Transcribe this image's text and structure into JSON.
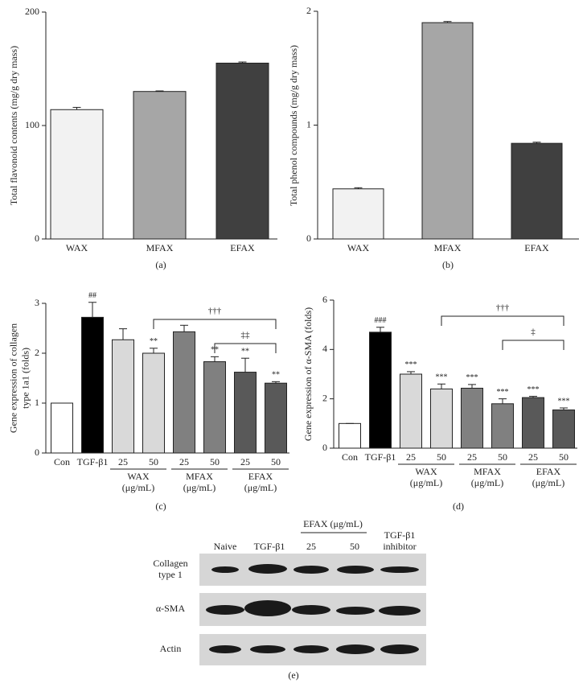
{
  "chart_data": [
    {
      "type": "bar",
      "ylabel": [
        "Total flavonoid contents (mg/g dry mass)"
      ],
      "caption": "(a)",
      "categories": [
        "WAX",
        "MFAX",
        "EFAX"
      ],
      "values": [
        114,
        130,
        155
      ],
      "errors": [
        2,
        0.5,
        1
      ],
      "colors": [
        "#f2f2f2",
        "#a6a6a6",
        "#404040"
      ],
      "ylim": [
        0,
        200
      ],
      "yticks": [
        0,
        100,
        200
      ]
    },
    {
      "type": "bar",
      "ylabel": [
        "Total phenol compounds (mg/g dry mass)"
      ],
      "caption": "(b)",
      "categories": [
        "WAX",
        "MFAX",
        "EFAX"
      ],
      "values": [
        0.44,
        1.9,
        0.84
      ],
      "errors": [
        0.01,
        0.01,
        0.01
      ],
      "colors": [
        "#f2f2f2",
        "#a6a6a6",
        "#404040"
      ],
      "ylim": [
        0,
        2
      ],
      "yticks": [
        0,
        1,
        2
      ]
    },
    {
      "type": "bar",
      "ylabel": [
        "Gene expression of collagen",
        "type 1a1 (folds)"
      ],
      "caption": "(c)",
      "categories": [
        "Con",
        "TGF-β1",
        "25",
        "50",
        "25",
        "50",
        "25",
        "50"
      ],
      "values": [
        1.0,
        2.72,
        2.27,
        2.0,
        2.43,
        1.83,
        1.62,
        1.4
      ],
      "errors": [
        0,
        0.3,
        0.22,
        0.1,
        0.13,
        0.1,
        0.28,
        0.03
      ],
      "annotations": [
        null,
        "##",
        null,
        "**",
        null,
        "**",
        "**",
        "**"
      ],
      "colors": [
        "#ffffff",
        "#000000",
        "#d9d9d9",
        "#d9d9d9",
        "#808080",
        "#808080",
        "#595959",
        "#595959"
      ],
      "groups": [
        {
          "name": "WAX",
          "unit": "(μg/mL)"
        },
        {
          "name": "MFAX",
          "unit": "(μg/mL)"
        },
        {
          "name": "EFAX",
          "unit": "(μg/mL)"
        }
      ],
      "brackets": [
        {
          "label": "†††",
          "from": 3,
          "to": 7
        },
        {
          "label": "‡‡",
          "from": 5,
          "to": 7
        }
      ],
      "ylim": [
        0,
        3
      ],
      "yticks": [
        0,
        1,
        2,
        3
      ]
    },
    {
      "type": "bar",
      "ylabel": [
        "Gene expression of α-SMA (folds)"
      ],
      "caption": "(d)",
      "categories": [
        "Con",
        "TGF-β1",
        "25",
        "50",
        "25",
        "50",
        "25",
        "50"
      ],
      "values": [
        1.0,
        4.7,
        3.0,
        2.4,
        2.43,
        1.8,
        2.05,
        1.55
      ],
      "errors": [
        0,
        0.2,
        0.1,
        0.2,
        0.15,
        0.2,
        0.05,
        0.08
      ],
      "annotations": [
        null,
        "###",
        "***",
        "***",
        "***",
        "***",
        "***",
        "***"
      ],
      "colors": [
        "#ffffff",
        "#000000",
        "#d9d9d9",
        "#d9d9d9",
        "#808080",
        "#808080",
        "#595959",
        "#595959"
      ],
      "groups": [
        {
          "name": "WAX",
          "unit": "(μg/mL)"
        },
        {
          "name": "MFAX",
          "unit": "(μg/mL)"
        },
        {
          "name": "EFAX",
          "unit": "(μg/mL)"
        }
      ],
      "brackets": [
        {
          "label": "†††",
          "from": 3,
          "to": 7
        },
        {
          "label": "‡",
          "from": 5,
          "to": 7
        }
      ],
      "ylim": [
        0,
        6
      ],
      "yticks": [
        0,
        2,
        4,
        6
      ]
    }
  ],
  "blot": {
    "header": "EFAX (μg/mL)",
    "columns": [
      [
        "Naive"
      ],
      [
        "TGF-β1"
      ],
      [
        "25"
      ],
      [
        "50"
      ],
      [
        "TGF-β1",
        "inhibitor"
      ]
    ],
    "rows": [
      [
        "Collagen",
        "type 1"
      ],
      [
        "α-SMA"
      ],
      [
        "Actin"
      ]
    ],
    "caption": "(e)"
  }
}
